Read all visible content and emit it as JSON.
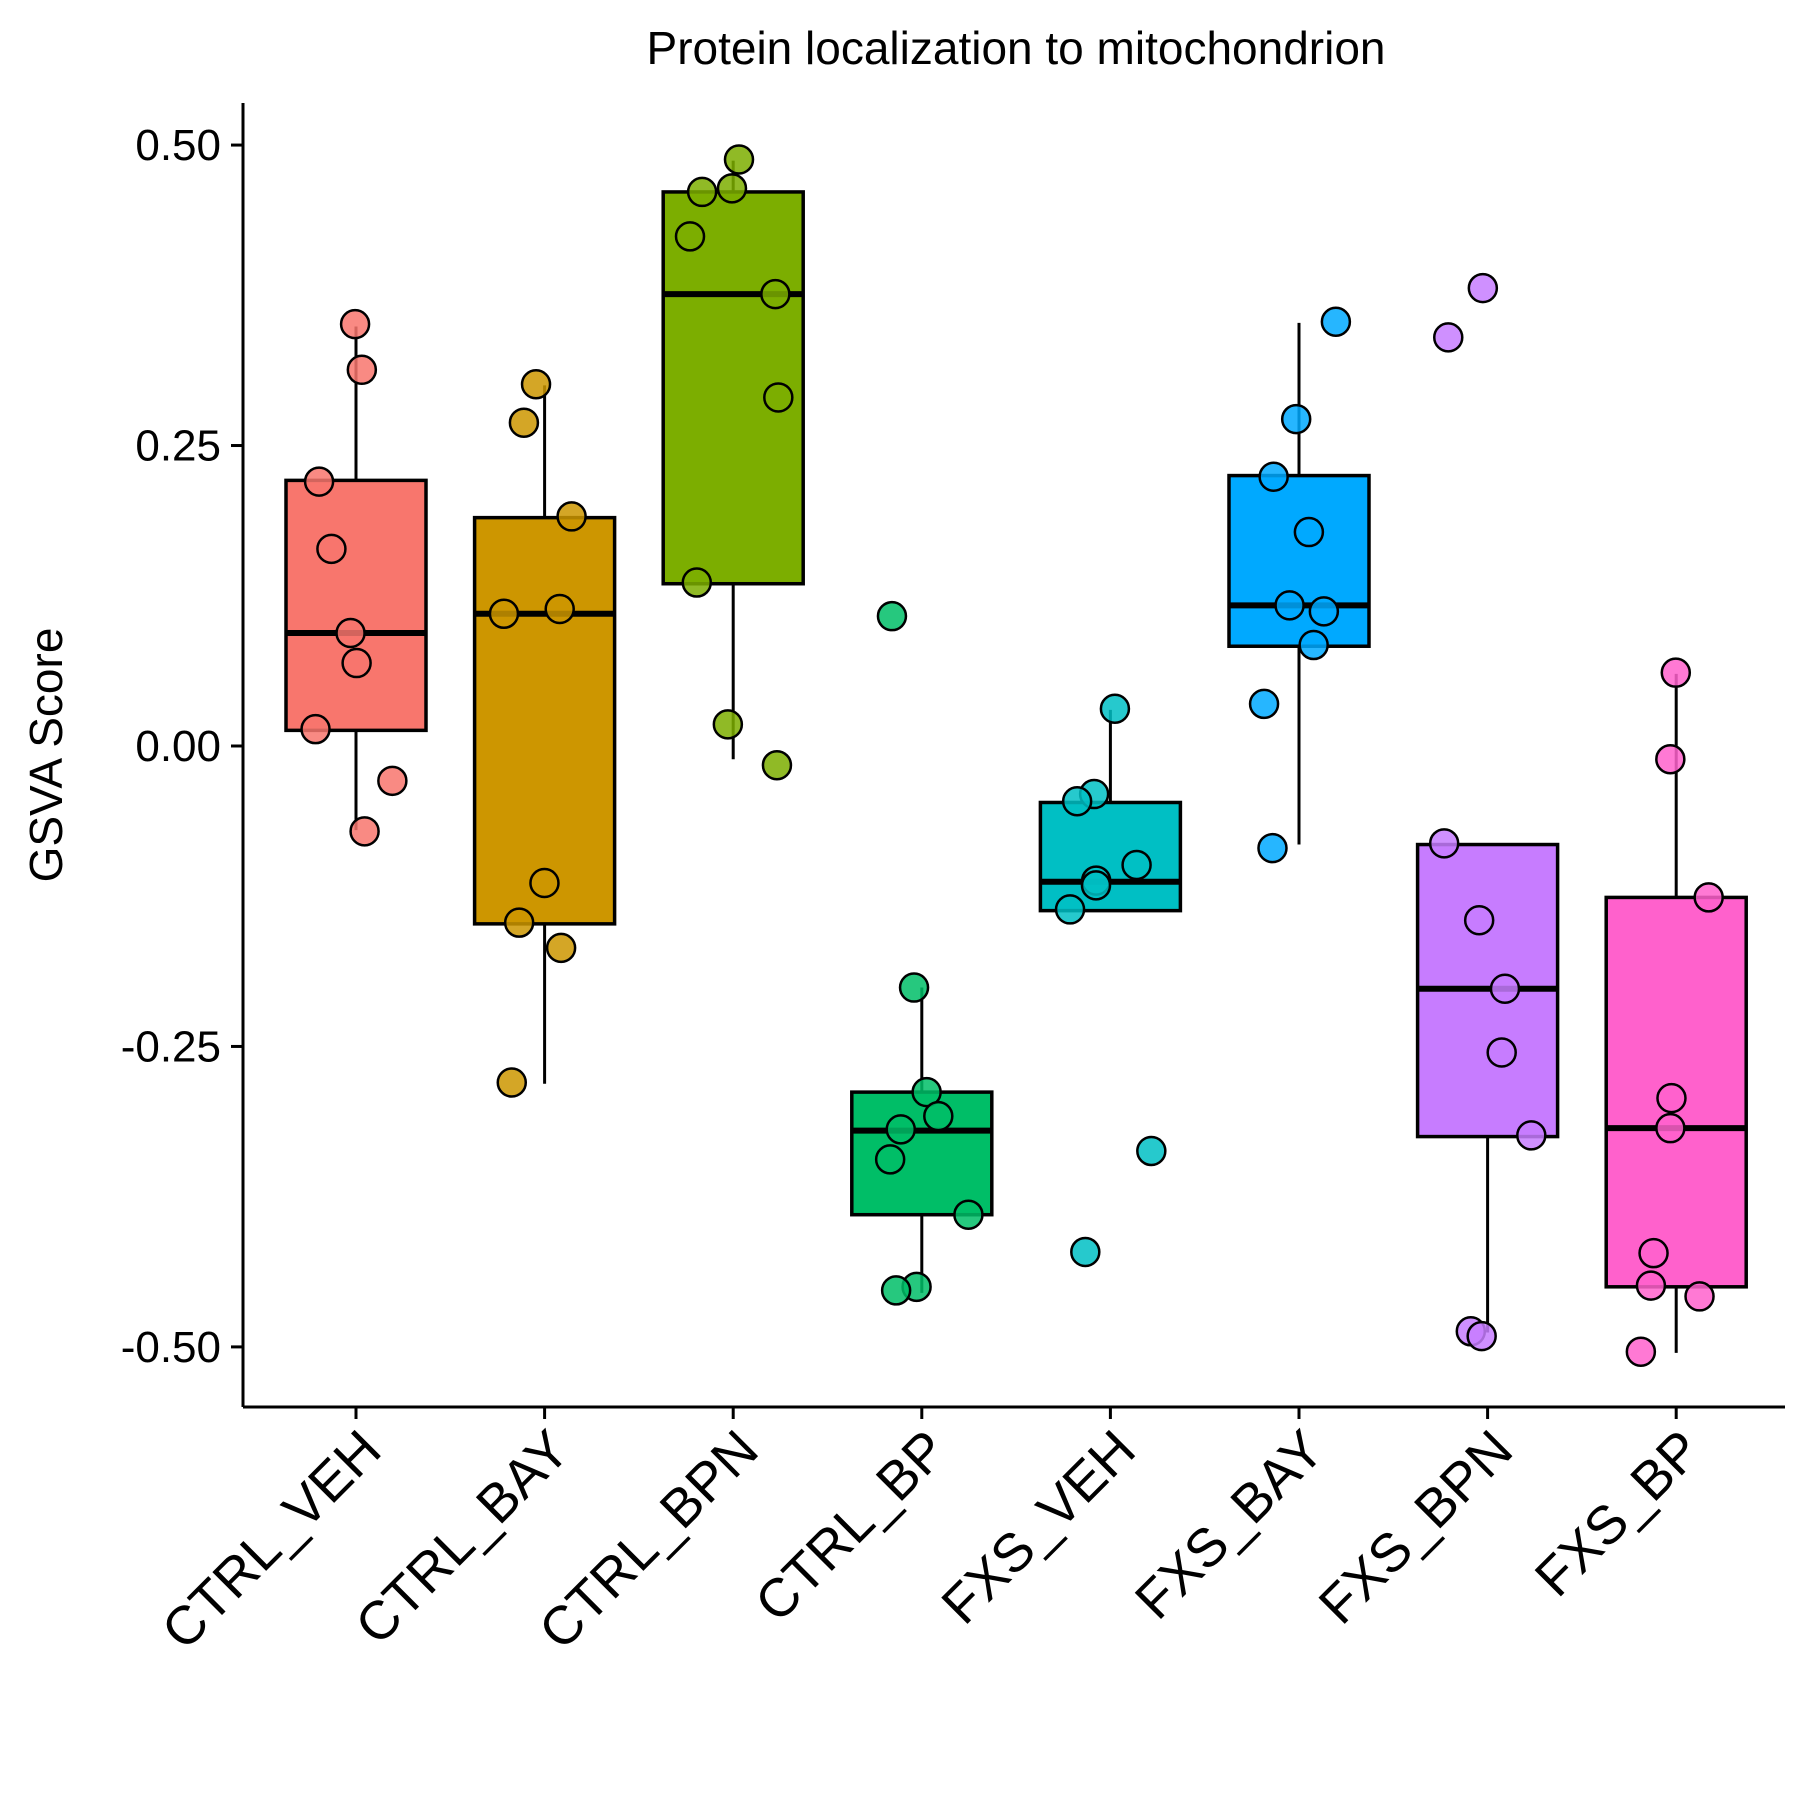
{
  "chart_data": {
    "type": "boxplot",
    "title": "Protein localization to mitochondrion",
    "xlabel": "",
    "ylabel": "GSVA Score",
    "ylim": [
      -0.55,
      0.535
    ],
    "yticks": [
      "0.50",
      "0.25",
      "0.00",
      "-0.25",
      "-0.50"
    ],
    "ytick_values": [
      0.5,
      0.25,
      0.0,
      -0.25,
      -0.5
    ],
    "grid": false,
    "legend": "none",
    "categories": [
      "CTRL_VEH",
      "CTRL_BAY",
      "CTRL_BPN",
      "CTRL_BP",
      "FXS_VEH",
      "FXS_BAY",
      "FXS_BPN",
      "FXS_BP"
    ],
    "colors": [
      "#F8766D",
      "#CD9600",
      "#7CAE00",
      "#00BE67",
      "#00BFC4",
      "#00A9FF",
      "#C77CFF",
      "#FF61CC"
    ],
    "groups": [
      {
        "name": "CTRL_VEH",
        "q1": 0.013,
        "median": 0.094,
        "q3": 0.221,
        "whisker_low": -0.07,
        "whisker_high": 0.349,
        "points": [
          0.351,
          0.313,
          0.22,
          0.164,
          0.094,
          0.069,
          0.014,
          -0.029,
          -0.071
        ]
      },
      {
        "name": "CTRL_BAY",
        "q1": -0.148,
        "median": 0.11,
        "q3": 0.19,
        "whisker_low": -0.281,
        "whisker_high": 0.3,
        "points": [
          0.301,
          0.269,
          0.191,
          0.114,
          0.11,
          -0.114,
          -0.147,
          -0.168,
          -0.28
        ]
      },
      {
        "name": "CTRL_BPN",
        "q1": 0.135,
        "median": 0.376,
        "q3": 0.461,
        "whisker_low": -0.011,
        "whisker_high": 0.487,
        "points": [
          0.488,
          0.464,
          0.461,
          0.424,
          0.376,
          0.29,
          0.136,
          0.018,
          -0.016
        ]
      },
      {
        "name": "CTRL_BP",
        "q1": -0.39,
        "median": -0.32,
        "q3": -0.288,
        "whisker_low": -0.455,
        "whisker_high": -0.201,
        "points": [
          0.108,
          -0.201,
          -0.288,
          -0.308,
          -0.319,
          -0.344,
          -0.39,
          -0.45,
          -0.453
        ]
      },
      {
        "name": "FXS_VEH",
        "q1": -0.137,
        "median": -0.113,
        "q3": -0.047,
        "whisker_low": -0.137,
        "whisker_high": 0.03,
        "points": [
          0.031,
          -0.04,
          -0.046,
          -0.099,
          -0.112,
          -0.116,
          -0.136,
          -0.337,
          -0.421
        ]
      },
      {
        "name": "FXS_BAY",
        "q1": 0.083,
        "median": 0.117,
        "q3": 0.225,
        "whisker_low": -0.082,
        "whisker_high": 0.352,
        "points": [
          0.353,
          0.272,
          0.224,
          0.178,
          0.117,
          0.112,
          0.084,
          0.035,
          -0.085
        ]
      },
      {
        "name": "FXS_BPN",
        "q1": -0.325,
        "median": -0.202,
        "q3": -0.082,
        "whisker_low": -0.488,
        "whisker_high": -0.082,
        "points": [
          0.381,
          0.34,
          -0.081,
          -0.145,
          -0.202,
          -0.255,
          -0.324,
          -0.487,
          -0.491
        ]
      },
      {
        "name": "FXS_BP",
        "q1": -0.45,
        "median": -0.318,
        "q3": -0.126,
        "whisker_low": -0.505,
        "whisker_high": 0.06,
        "points": [
          0.061,
          -0.011,
          -0.126,
          -0.293,
          -0.318,
          -0.422,
          -0.449,
          -0.458,
          -0.504
        ]
      }
    ]
  }
}
